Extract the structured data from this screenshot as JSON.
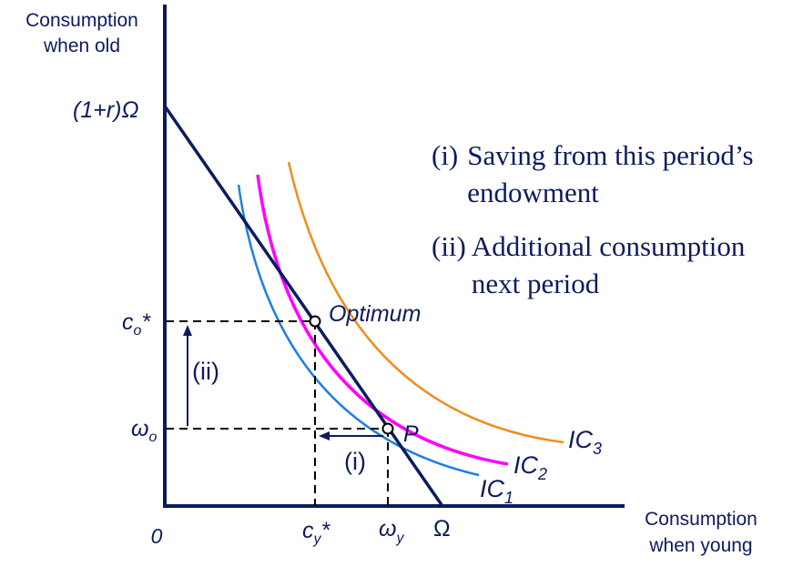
{
  "axes": {
    "y_title_line1": "Consumption",
    "y_title_line2": "when old",
    "x_title_line1": "Consumption",
    "x_title_line2": "when young",
    "origin": "0"
  },
  "tick_labels": {
    "y_intercept": "(1+r)Ω",
    "co_star_main": "c",
    "co_star_sub": "o",
    "co_star_tail": "*",
    "omega_o_main": "ω",
    "omega_o_sub": "o",
    "cy_star_main": "c",
    "cy_star_sub": "y",
    "cy_star_tail": "*",
    "omega_y_main": "ω",
    "omega_y_sub": "y",
    "x_intercept": "Ω"
  },
  "point_labels": {
    "optimum": "Optimum",
    "endowment": "P",
    "arrow_i": "(i)",
    "arrow_ii": "(ii)"
  },
  "curves": {
    "ic1": {
      "main": "IC",
      "sub": "1",
      "color": "#1f7fe0"
    },
    "ic2": {
      "main": "IC",
      "sub": "2",
      "color": "#ff00ff"
    },
    "ic3": {
      "main": "IC",
      "sub": "3",
      "color": "#f08c1e"
    },
    "budget_color": "#0d1b5e"
  },
  "notes": [
    {
      "num": "(i)",
      "text": "Saving from this period’s endowment"
    },
    {
      "num": "(ii)",
      "text": "Additional consumption next period"
    }
  ]
}
